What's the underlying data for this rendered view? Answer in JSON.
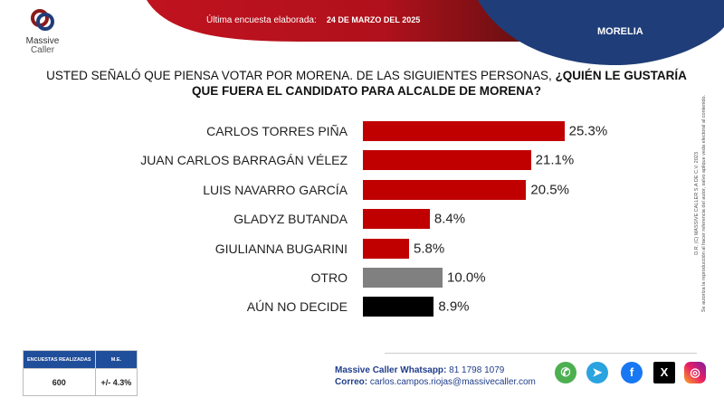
{
  "header": {
    "brand_line1": "Massive",
    "brand_line2": "Caller",
    "survey_label": "Última encuesta elaborada:",
    "survey_date": "24 DE MARZO DEL 2025",
    "city": "MORELIA"
  },
  "question": {
    "normal": "USTED SEÑALÓ QUE PIENSA VOTAR POR MORENA.  DE LAS SIGUIENTES PERSONAS, ",
    "bold": "¿QUIÉN LE GUSTARÍA QUE FUERA EL CANDIDATO PARA ALCALDE DE MORENA?"
  },
  "chart_data": {
    "type": "bar",
    "orientation": "horizontal",
    "categories": [
      "CARLOS TORRES PIÑA",
      "JUAN CARLOS BARRAGÁN VÉLEZ",
      "LUIS NAVARRO GARCÍA",
      "GLADYZ BUTANDA",
      "GIULIANNA BUGARINI",
      "OTRO",
      "AÚN NO DECIDE"
    ],
    "values": [
      25.3,
      21.1,
      20.5,
      8.4,
      5.8,
      10.0,
      8.9
    ],
    "labels": [
      "25.3%",
      "21.1%",
      "20.5%",
      "8.4%",
      "5.8%",
      "10.0%",
      "8.9%"
    ],
    "colors": [
      "#c00000",
      "#c00000",
      "#c00000",
      "#c00000",
      "#c00000",
      "#808080",
      "#000000"
    ],
    "unit": "%"
  },
  "copyright": {
    "line1": "D.R. (C) MASSIVE CALLER S.A DE C.V. 2023",
    "line2": "Se autoriza la reproducción al hacer referencia del autor, salvo aplique veda electoral al contenido."
  },
  "stats": {
    "h1": "ENCUESTAS REALIZADAS",
    "h2": "M.E.",
    "surveys": "600",
    "margin": "+/- 4.3%"
  },
  "contact": {
    "whatsapp_label": "Massive Caller Whatsapp:",
    "whatsapp": "81 1798 1079",
    "email_label": "Correo:",
    "email": "carlos.campos.riojas@massivecaller.com"
  }
}
